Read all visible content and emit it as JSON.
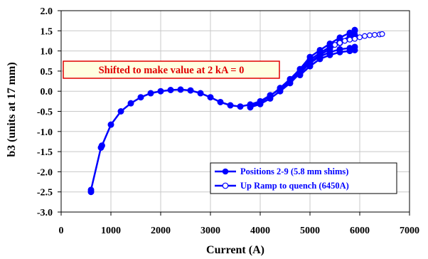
{
  "chart_data": {
    "type": "scatter",
    "xlabel": "Current (A)",
    "ylabel": "b3 (units at 17 mm)",
    "xlim": [
      0,
      7000
    ],
    "ylim": [
      -3.0,
      2.0
    ],
    "x_ticks": [
      0,
      1000,
      2000,
      3000,
      4000,
      5000,
      6000,
      7000
    ],
    "y_ticks": [
      -3.0,
      -2.5,
      -2.0,
      -1.5,
      -1.0,
      -0.5,
      0.0,
      0.5,
      1.0,
      1.5,
      2.0
    ],
    "x_tick_labels": [
      "0",
      "1000",
      "2000",
      "3000",
      "4000",
      "5000",
      "6000",
      "7000"
    ],
    "y_tick_labels": [
      "-3.0",
      "-2.5",
      "-2.0",
      "-1.5",
      "-1.0",
      "-0.5",
      "0.0",
      "0.5",
      "1.0",
      "1.5",
      "2.0"
    ],
    "grid": true,
    "legend_position": "bottom-right",
    "annotation": "Shifted to make value at 2 kA = 0",
    "series": [
      {
        "name": "Positions 2-9 (5.8 mm shims)",
        "color": "#0000ff",
        "marker": "filled-circle",
        "lines": [
          {
            "x": [
              600,
              600,
              800,
              820,
              1000,
              1200,
              1400,
              1600,
              1800,
              2000,
              2200,
              2400,
              2600,
              2800,
              3000,
              3200,
              3400,
              3600,
              3800,
              4000,
              4200,
              4400,
              4600,
              4800,
              5000,
              5200,
              5400,
              5600,
              5800,
              5900
            ],
            "y": [
              -2.5,
              -2.45,
              -1.4,
              -1.35,
              -0.83,
              -0.5,
              -0.3,
              -0.15,
              -0.05,
              0.0,
              0.03,
              0.04,
              0.02,
              -0.05,
              -0.15,
              -0.27,
              -0.35,
              -0.38,
              -0.33,
              -0.25,
              -0.1,
              0.05,
              0.25,
              0.5,
              0.78,
              0.95,
              1.1,
              1.25,
              1.35,
              1.5
            ]
          },
          {
            "x": [
              3800,
              4000,
              4200,
              4400,
              4600,
              4800,
              5000,
              5200,
              5400,
              5600,
              5800,
              5900
            ],
            "y": [
              -0.4,
              -0.32,
              -0.18,
              0.0,
              0.2,
              0.45,
              0.72,
              0.9,
              1.05,
              1.2,
              1.3,
              1.4
            ]
          },
          {
            "x": [
              3800,
              4000,
              4200,
              4400,
              4600,
              4800,
              5000,
              5200,
              5400,
              5600,
              5800,
              5900
            ],
            "y": [
              -0.36,
              -0.28,
              -0.12,
              0.08,
              0.3,
              0.55,
              0.85,
              1.02,
              1.18,
              1.33,
              1.45,
              1.52
            ]
          },
          {
            "x": [
              4800,
              5000,
              5200,
              5400,
              5600,
              5800,
              5900
            ],
            "y": [
              0.4,
              0.62,
              0.8,
              0.9,
              0.97,
              1.0,
              1.02
            ]
          },
          {
            "x": [
              4800,
              5000,
              5200,
              5400,
              5600,
              5800,
              5900
            ],
            "y": [
              0.45,
              0.7,
              0.86,
              0.97,
              1.04,
              1.07,
              1.1
            ]
          }
        ]
      },
      {
        "name": "Up Ramp to quench (6450A)",
        "color": "#0000ff",
        "marker": "open-circle",
        "lines": [
          {
            "x": [
              5500,
              5600,
              5700,
              5800,
              5900,
              6000,
              6100,
              6200,
              6300,
              6400,
              6450
            ],
            "y": [
              1.15,
              1.2,
              1.25,
              1.28,
              1.3,
              1.34,
              1.37,
              1.39,
              1.4,
              1.41,
              1.42
            ]
          }
        ]
      }
    ]
  }
}
